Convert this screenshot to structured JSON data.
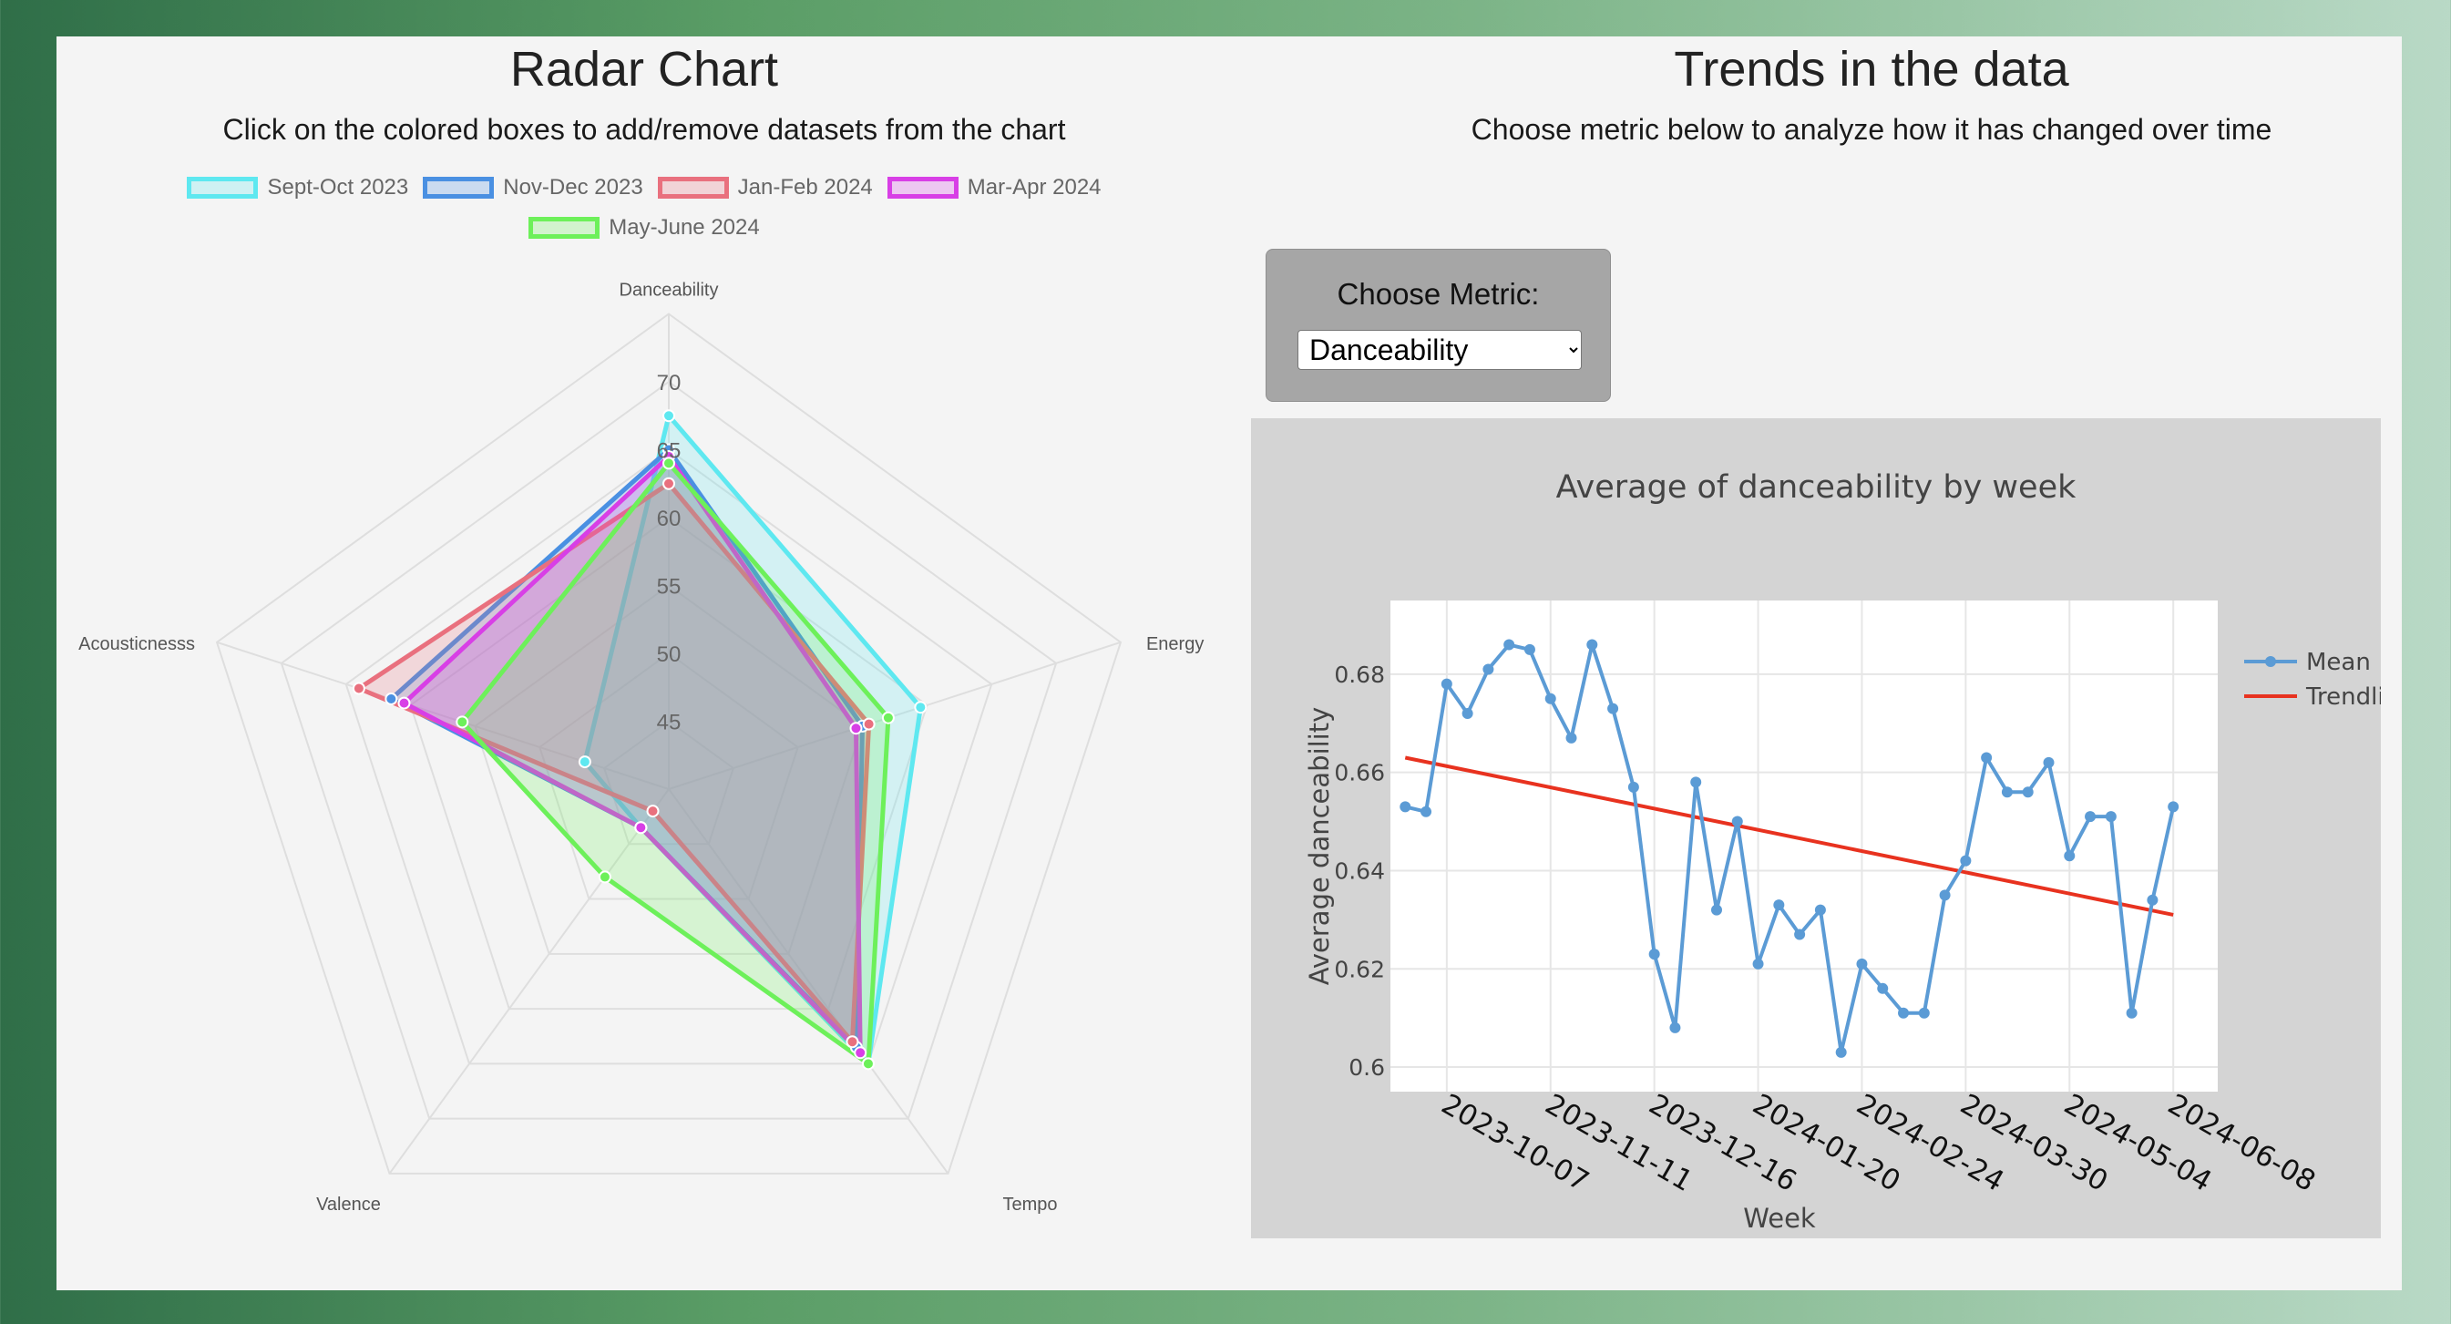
{
  "left": {
    "title": "Radar Chart",
    "subtitle": "Click on the colored boxes to add/remove datasets from the chart"
  },
  "right": {
    "title": "Trends in the data",
    "subtitle": "Choose metric below to analyze how it has changed over time"
  },
  "metric": {
    "label": "Choose Metric:",
    "selected": "Danceability"
  },
  "chart_data": [
    {
      "type": "radar",
      "axes": [
        "Danceability",
        "Energy",
        "Tempo",
        "Valence",
        "Acousticnesss"
      ],
      "r_ticks": [
        "45",
        "50",
        "55",
        "60",
        "65",
        "70"
      ],
      "r_range": [
        40,
        70
      ],
      "series": [
        {
          "name": "Sept-Oct 2023",
          "color": "#5ee8f0",
          "values": [
            67.5,
            59.5,
            65.0,
            43.5,
            46.5
          ]
        },
        {
          "name": "Nov-Dec 2023",
          "color": "#4a90e2",
          "values": [
            65.0,
            55.0,
            63.5,
            43.5,
            61.5
          ]
        },
        {
          "name": "Jan-Feb 2024",
          "color": "#e9707e",
          "values": [
            62.5,
            55.5,
            63.0,
            42.0,
            64.0
          ]
        },
        {
          "name": "Mar-Apr 2024",
          "color": "#d83fe6",
          "values": [
            64.5,
            54.5,
            64.0,
            43.5,
            60.5
          ]
        },
        {
          "name": "May-June 2024",
          "color": "#6df05a",
          "values": [
            64.0,
            57.0,
            65.0,
            48.0,
            56.0
          ]
        }
      ]
    },
    {
      "type": "line",
      "title": "Average of danceability by week",
      "xlabel": "Week",
      "ylabel": "Average danceability",
      "x_ticks": [
        "2023-10-07",
        "2023-11-11",
        "2023-12-16",
        "2024-01-20",
        "2024-02-24",
        "2024-03-30",
        "2024-05-04",
        "2024-06-08"
      ],
      "y_ticks": [
        "0.6",
        "0.62",
        "0.64",
        "0.66",
        "0.68"
      ],
      "ylim": [
        0.595,
        0.695
      ],
      "xlim": [
        "2023-09-18",
        "2024-06-23"
      ],
      "legend": [
        "Mean",
        "Trendline"
      ],
      "mean_color": "#5b9bd5",
      "trend_color": "#e8321f",
      "x": [
        "2023-09-23",
        "2023-09-30",
        "2023-10-07",
        "2023-10-14",
        "2023-10-21",
        "2023-10-28",
        "2023-11-04",
        "2023-11-11",
        "2023-11-18",
        "2023-11-25",
        "2023-12-02",
        "2023-12-09",
        "2023-12-16",
        "2023-12-23",
        "2023-12-30",
        "2024-01-06",
        "2024-01-13",
        "2024-01-20",
        "2024-01-27",
        "2024-02-03",
        "2024-02-10",
        "2024-02-17",
        "2024-02-24",
        "2024-03-02",
        "2024-03-09",
        "2024-03-16",
        "2024-03-23",
        "2024-03-30",
        "2024-04-06",
        "2024-04-13",
        "2024-04-20",
        "2024-04-27",
        "2024-05-04",
        "2024-05-11",
        "2024-05-18",
        "2024-05-25",
        "2024-06-01",
        "2024-06-08"
      ],
      "values": [
        0.653,
        0.652,
        0.678,
        0.672,
        0.681,
        0.686,
        0.685,
        0.675,
        0.667,
        0.686,
        0.673,
        0.657,
        0.623,
        0.608,
        0.658,
        0.632,
        0.65,
        0.621,
        0.633,
        0.627,
        0.632,
        0.603,
        0.621,
        0.616,
        0.611,
        0.611,
        0.635,
        0.642,
        0.663,
        0.656,
        0.656,
        0.662,
        0.643,
        0.651,
        0.651,
        0.611,
        0.634,
        0.653
      ],
      "trend": {
        "x": [
          "2023-09-23",
          "2024-06-08"
        ],
        "y": [
          0.663,
          0.631
        ]
      }
    }
  ]
}
